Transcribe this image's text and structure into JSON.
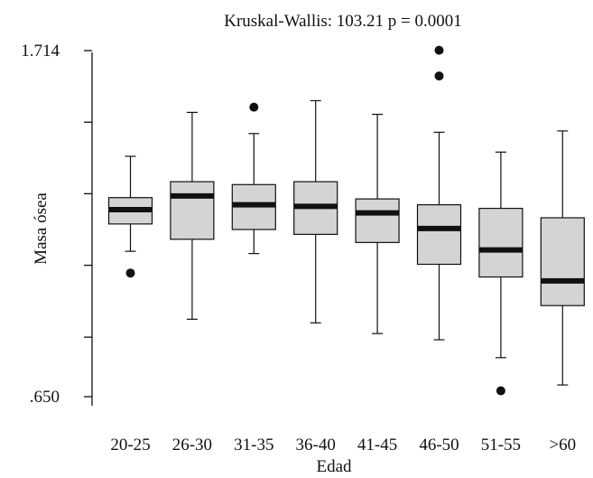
{
  "chart_data": {
    "type": "box",
    "title": "Kruskal-Wallis: 103.21  p = 0.0001",
    "xlabel": "Edad",
    "ylabel": "Masa ósea",
    "ylim": [
      0.65,
      1.714
    ],
    "y_tick_labels": [
      {
        "value": 1.714,
        "label": "1.714"
      },
      {
        "value": 0.65,
        "label": ".650"
      }
    ],
    "y_minor_ticks": [
      1.494,
      1.274,
      1.054,
      0.833
    ],
    "categories": [
      "20-25",
      "26-30",
      "31-35",
      "36-40",
      "41-45",
      "46-50",
      "51-55",
      ">60"
    ],
    "boxes": [
      {
        "category": "20-25",
        "whisker_low": 1.097,
        "q1": 1.181,
        "median": 1.225,
        "q3": 1.262,
        "whisker_high": 1.389,
        "outliers": [
          1.03
        ]
      },
      {
        "category": "26-30",
        "whisker_low": 0.888,
        "q1": 1.134,
        "median": 1.267,
        "q3": 1.311,
        "whisker_high": 1.524,
        "outliers": []
      },
      {
        "category": "31-35",
        "whisker_low": 1.09,
        "q1": 1.164,
        "median": 1.24,
        "q3": 1.302,
        "whisker_high": 1.459,
        "outliers": [
          1.54
        ]
      },
      {
        "category": "36-40",
        "whisker_low": 0.877,
        "q1": 1.149,
        "median": 1.235,
        "q3": 1.311,
        "whisker_high": 1.56,
        "outliers": []
      },
      {
        "category": "41-45",
        "whisker_low": 0.844,
        "q1": 1.124,
        "median": 1.215,
        "q3": 1.258,
        "whisker_high": 1.518,
        "outliers": []
      },
      {
        "category": "46-50",
        "whisker_low": 0.825,
        "q1": 1.057,
        "median": 1.167,
        "q3": 1.24,
        "whisker_high": 1.463,
        "outliers": [
          1.636,
          1.715
        ]
      },
      {
        "category": "51-55",
        "whisker_low": 0.77,
        "q1": 1.018,
        "median": 1.101,
        "q3": 1.229,
        "whisker_high": 1.402,
        "outliers": [
          0.668
        ]
      },
      {
        "category": ">60",
        "whisker_low": 0.686,
        "q1": 0.93,
        "median": 1.006,
        "q3": 1.2,
        "whisker_high": 1.467,
        "outliers": []
      }
    ]
  }
}
